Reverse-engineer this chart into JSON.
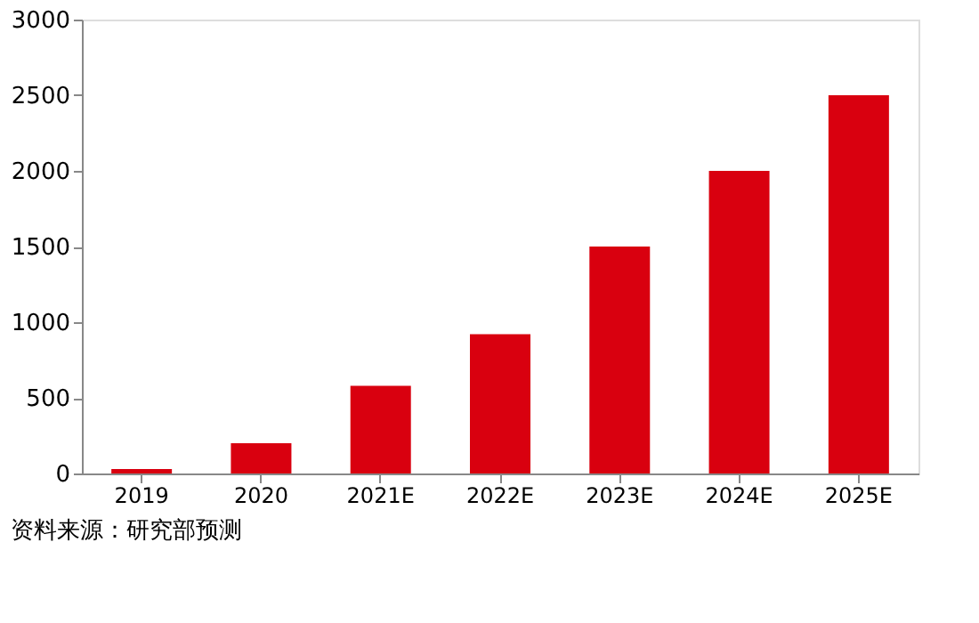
{
  "chart_data": {
    "type": "bar",
    "categories": [
      "2019",
      "2020",
      "2021E",
      "2022E",
      "2023E",
      "2024E",
      "2025E"
    ],
    "values": [
      30,
      200,
      580,
      920,
      1500,
      2000,
      2500
    ],
    "color": "#d9000f",
    "ylim": [
      0,
      3000
    ],
    "yticks": [
      0,
      500,
      1000,
      1500,
      2000,
      2500,
      3000
    ],
    "grid": false,
    "annotations": [
      "资料来源：研究部预测"
    ]
  }
}
